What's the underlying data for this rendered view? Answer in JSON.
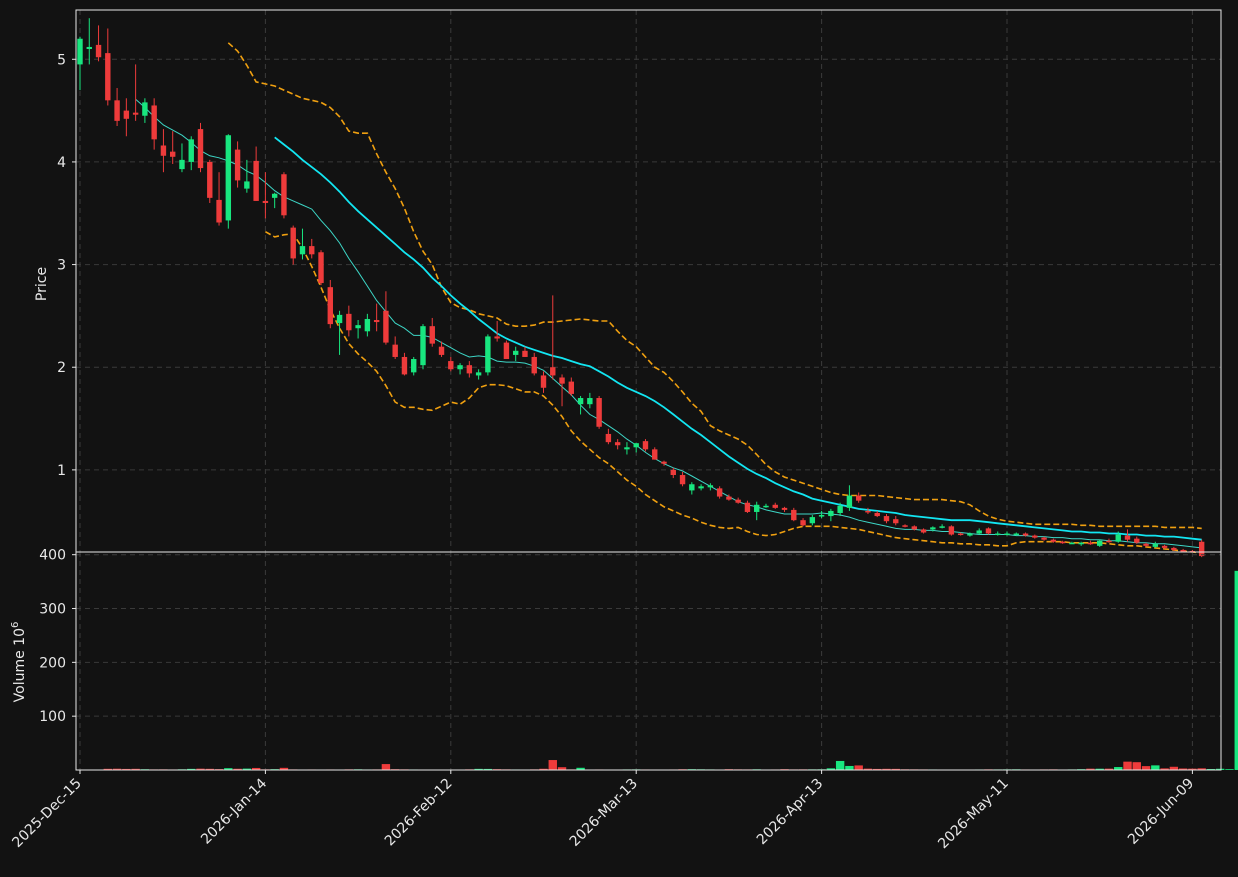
{
  "chart_data": {
    "type": "candlestick",
    "theme": {
      "background": "#121212",
      "up_color": "#18e67f",
      "down_color": "#ee3b3b",
      "ma_fast_color": "#3dd6c6",
      "ma_slow_color": "#12e6f2",
      "band_color": "#f0a010",
      "grid": "dashed",
      "text_color": "#e8e8e8"
    },
    "price_panel": {
      "ylabel": "Price",
      "yticks": [
        1,
        2,
        3,
        4,
        5
      ],
      "ylim": [
        0.2,
        5.48
      ]
    },
    "volume_panel": {
      "ylabel": "Volume  10",
      "ylabel_exp": "6",
      "yticks": [
        100,
        200,
        300,
        400
      ],
      "ylim": [
        0,
        405
      ]
    },
    "xticks": [
      {
        "label": "2025-Dec-15",
        "index": 0
      },
      {
        "label": "2026-Jan-14",
        "index": 20
      },
      {
        "label": "2026-Feb-12",
        "index": 40
      },
      {
        "label": "2026-Mar-13",
        "index": 60
      },
      {
        "label": "2026-Apr-13",
        "index": 80
      },
      {
        "label": "2026-May-11",
        "index": 100
      },
      {
        "label": "2026-Jun-09",
        "index": 120
      }
    ],
    "ohlc": [
      [
        4.95,
        5.22,
        4.7,
        5.2
      ],
      [
        5.1,
        5.4,
        4.95,
        5.12
      ],
      [
        5.14,
        5.33,
        4.98,
        5.02
      ],
      [
        5.06,
        5.3,
        4.55,
        4.6
      ],
      [
        4.6,
        4.72,
        4.35,
        4.4
      ],
      [
        4.5,
        4.62,
        4.25,
        4.42
      ],
      [
        4.48,
        4.95,
        4.4,
        4.46
      ],
      [
        4.45,
        4.62,
        4.38,
        4.58
      ],
      [
        4.55,
        4.62,
        4.12,
        4.22
      ],
      [
        4.16,
        4.32,
        3.9,
        4.06
      ],
      [
        4.1,
        4.3,
        3.98,
        4.05
      ],
      [
        3.93,
        4.18,
        3.9,
        4.02
      ],
      [
        4.0,
        4.25,
        3.92,
        4.22
      ],
      [
        4.32,
        4.38,
        3.9,
        3.94
      ],
      [
        4.0,
        4.02,
        3.6,
        3.65
      ],
      [
        3.63,
        3.9,
        3.38,
        3.41
      ],
      [
        3.43,
        4.27,
        3.35,
        4.26
      ],
      [
        4.12,
        4.2,
        3.75,
        3.82
      ],
      [
        3.74,
        4.02,
        3.7,
        3.81
      ],
      [
        4.01,
        4.15,
        3.62,
        3.62
      ],
      [
        3.62,
        3.9,
        3.45,
        3.6
      ],
      [
        3.65,
        3.7,
        3.55,
        3.69
      ],
      [
        3.88,
        3.9,
        3.45,
        3.48
      ],
      [
        3.36,
        3.38,
        3.0,
        3.06
      ],
      [
        3.1,
        3.35,
        3.05,
        3.18
      ],
      [
        3.18,
        3.25,
        3.06,
        3.1
      ],
      [
        3.12,
        3.14,
        2.8,
        2.82
      ],
      [
        2.78,
        2.85,
        2.38,
        2.42
      ],
      [
        2.43,
        2.55,
        2.12,
        2.51
      ],
      [
        2.52,
        2.6,
        2.3,
        2.36
      ],
      [
        2.38,
        2.46,
        2.28,
        2.41
      ],
      [
        2.35,
        2.52,
        2.3,
        2.47
      ],
      [
        2.46,
        2.62,
        2.35,
        2.44
      ],
      [
        2.55,
        2.74,
        2.22,
        2.24
      ],
      [
        2.22,
        2.3,
        2.08,
        2.1
      ],
      [
        2.1,
        2.14,
        1.92,
        1.93
      ],
      [
        1.95,
        2.1,
        1.92,
        2.08
      ],
      [
        2.02,
        2.42,
        1.98,
        2.4
      ],
      [
        2.4,
        2.48,
        2.2,
        2.23
      ],
      [
        2.2,
        2.25,
        2.1,
        2.12
      ],
      [
        2.06,
        2.1,
        1.96,
        1.98
      ],
      [
        1.98,
        2.04,
        1.93,
        2.02
      ],
      [
        2.02,
        2.06,
        1.9,
        1.94
      ],
      [
        1.92,
        1.98,
        1.88,
        1.95
      ],
      [
        1.95,
        2.32,
        1.92,
        2.3
      ],
      [
        2.3,
        2.45,
        2.25,
        2.28
      ],
      [
        2.24,
        2.26,
        2.08,
        2.08
      ],
      [
        2.12,
        2.2,
        2.06,
        2.16
      ],
      [
        2.16,
        2.2,
        2.1,
        2.1
      ],
      [
        2.1,
        2.14,
        1.92,
        1.94
      ],
      [
        1.92,
        1.96,
        1.75,
        1.8
      ],
      [
        2.0,
        2.7,
        1.88,
        1.92
      ],
      [
        1.9,
        1.93,
        1.62,
        1.84
      ],
      [
        1.86,
        1.9,
        1.72,
        1.74
      ],
      [
        1.64,
        1.72,
        1.54,
        1.7
      ],
      [
        1.64,
        1.75,
        1.6,
        1.7
      ],
      [
        1.7,
        1.72,
        1.4,
        1.42
      ],
      [
        1.35,
        1.4,
        1.25,
        1.27
      ],
      [
        1.27,
        1.3,
        1.2,
        1.24
      ],
      [
        1.2,
        1.27,
        1.15,
        1.22
      ],
      [
        1.22,
        1.26,
        1.17,
        1.26
      ],
      [
        1.28,
        1.3,
        1.18,
        1.2
      ],
      [
        1.2,
        1.22,
        1.1,
        1.1
      ],
      [
        1.08,
        1.09,
        1.04,
        1.06
      ],
      [
        1.0,
        1.02,
        0.92,
        0.95
      ],
      [
        0.95,
        0.98,
        0.84,
        0.86
      ],
      [
        0.8,
        0.88,
        0.76,
        0.86
      ],
      [
        0.82,
        0.86,
        0.8,
        0.84
      ],
      [
        0.83,
        0.87,
        0.8,
        0.85
      ],
      [
        0.82,
        0.84,
        0.72,
        0.74
      ],
      [
        0.74,
        0.76,
        0.7,
        0.71
      ],
      [
        0.71,
        0.73,
        0.67,
        0.68
      ],
      [
        0.68,
        0.7,
        0.58,
        0.59
      ],
      [
        0.59,
        0.69,
        0.51,
        0.66
      ],
      [
        0.65,
        0.67,
        0.63,
        0.65
      ],
      [
        0.66,
        0.68,
        0.62,
        0.63
      ],
      [
        0.63,
        0.64,
        0.59,
        0.61
      ],
      [
        0.61,
        0.63,
        0.5,
        0.51
      ],
      [
        0.51,
        0.53,
        0.45,
        0.46
      ],
      [
        0.48,
        0.56,
        0.46,
        0.54
      ],
      [
        0.56,
        0.6,
        0.53,
        0.56
      ],
      [
        0.55,
        0.62,
        0.5,
        0.6
      ],
      [
        0.58,
        0.68,
        0.55,
        0.65
      ],
      [
        0.63,
        0.85,
        0.6,
        0.75
      ],
      [
        0.75,
        0.78,
        0.68,
        0.7
      ],
      [
        0.6,
        0.63,
        0.57,
        0.59
      ],
      [
        0.58,
        0.6,
        0.54,
        0.55
      ],
      [
        0.55,
        0.57,
        0.48,
        0.5
      ],
      [
        0.52,
        0.55,
        0.46,
        0.48
      ],
      [
        0.46,
        0.47,
        0.44,
        0.45
      ],
      [
        0.45,
        0.46,
        0.41,
        0.42
      ],
      [
        0.42,
        0.43,
        0.38,
        0.39
      ],
      [
        0.42,
        0.45,
        0.4,
        0.44
      ],
      [
        0.45,
        0.47,
        0.43,
        0.45
      ],
      [
        0.45,
        0.46,
        0.36,
        0.37
      ],
      [
        0.38,
        0.39,
        0.36,
        0.37
      ],
      [
        0.36,
        0.39,
        0.35,
        0.38
      ],
      [
        0.38,
        0.43,
        0.37,
        0.41
      ],
      [
        0.43,
        0.44,
        0.37,
        0.38
      ],
      [
        0.37,
        0.4,
        0.36,
        0.38
      ],
      [
        0.38,
        0.4,
        0.36,
        0.38
      ],
      [
        0.38,
        0.39,
        0.36,
        0.38
      ],
      [
        0.38,
        0.39,
        0.35,
        0.36
      ],
      [
        0.36,
        0.37,
        0.33,
        0.34
      ],
      [
        0.34,
        0.35,
        0.31,
        0.32
      ],
      [
        0.32,
        0.33,
        0.29,
        0.3
      ],
      [
        0.3,
        0.31,
        0.28,
        0.29
      ],
      [
        0.29,
        0.3,
        0.28,
        0.29
      ],
      [
        0.28,
        0.3,
        0.26,
        0.29
      ],
      [
        0.29,
        0.31,
        0.27,
        0.28
      ],
      [
        0.26,
        0.32,
        0.25,
        0.31
      ],
      [
        0.31,
        0.33,
        0.29,
        0.3
      ],
      [
        0.3,
        0.4,
        0.29,
        0.37
      ],
      [
        0.36,
        0.42,
        0.3,
        0.32
      ],
      [
        0.33,
        0.35,
        0.28,
        0.29
      ],
      [
        0.28,
        0.29,
        0.25,
        0.26
      ],
      [
        0.25,
        0.3,
        0.24,
        0.28
      ],
      [
        0.26,
        0.27,
        0.23,
        0.24
      ],
      [
        0.24,
        0.25,
        0.21,
        0.22
      ],
      [
        0.22,
        0.23,
        0.2,
        0.21
      ],
      [
        0.21,
        0.22,
        0.19,
        0.2
      ],
      [
        0.3,
        0.32,
        0.15,
        0.16
      ]
    ],
    "volume": [
      0.4,
      0.5,
      0.6,
      2.2,
      2.4,
      2.0,
      2.2,
      1.4,
      1.1,
      1.2,
      1.0,
      1.3,
      2.1,
      2.5,
      2.2,
      1.6,
      3.4,
      2.3,
      2.6,
      3.8,
      1.2,
      1.5,
      4.0,
      1.1,
      0.9,
      1.0,
      0.8,
      1.0,
      0.9,
      1.2,
      1.3,
      1.0,
      1.1,
      11.0,
      1.5,
      1.2,
      1.0,
      0.9,
      0.7,
      0.8,
      0.9,
      0.8,
      1.2,
      2.1,
      2.0,
      1.5,
      1.2,
      1.0,
      0.8,
      1.2,
      2.3,
      18.5,
      5.2,
      1.1,
      4.1,
      0.9,
      1.0,
      0.8,
      0.9,
      1.1,
      1.2,
      1.0,
      0.7,
      0.9,
      1.0,
      1.4,
      1.5,
      1.3,
      1.1,
      0.8,
      1.5,
      1.2,
      1.1,
      1.3,
      0.9,
      1.0,
      1.5,
      1.1,
      1.2,
      1.2,
      1.3,
      3.1,
      16.8,
      7.5,
      8.5,
      2.5,
      2.0,
      2.2,
      2.1,
      1.3,
      1.2,
      1.1,
      1.0,
      0.9,
      0.8,
      0.7,
      0.9,
      1.0,
      1.2,
      1.1,
      1.2,
      1.3,
      1.0,
      0.8,
      1.1,
      1.2,
      0.9,
      1.1,
      1.5,
      2.5,
      2.4,
      2.5,
      5.5,
      15.5,
      14.5,
      7.2,
      8.6,
      3.0,
      6.0,
      2.8,
      2.5,
      3.1,
      1.8,
      2.3,
      1.5,
      370.0
    ],
    "ma_fast": [
      4.61,
      4.53,
      4.44,
      4.36,
      4.31,
      4.26,
      4.19,
      4.11,
      4.06,
      4.04,
      4.01,
      3.97,
      3.91,
      3.87,
      3.8,
      3.72,
      3.66,
      3.62,
      3.58,
      3.54,
      3.43,
      3.33,
      3.21,
      3.06,
      2.93,
      2.79,
      2.65,
      2.54,
      2.43,
      2.38,
      2.31,
      2.31,
      2.29,
      2.24,
      2.19,
      2.14,
      2.1,
      2.11,
      2.1,
      2.06,
      2.05,
      2.05,
      2.04,
      2.01,
      1.97,
      1.89,
      1.81,
      1.73,
      1.63,
      1.54,
      1.49,
      1.43,
      1.37,
      1.3,
      1.24,
      1.17,
      1.11,
      1.06,
      1.02,
      0.99,
      0.94,
      0.89,
      0.84,
      0.79,
      0.74,
      0.69,
      0.66,
      0.64,
      0.61,
      0.59,
      0.57,
      0.57,
      0.57,
      0.57,
      0.58,
      0.57,
      0.56,
      0.54,
      0.51,
      0.49,
      0.47,
      0.45,
      0.43,
      0.42,
      0.42,
      0.41,
      0.41,
      0.4,
      0.4,
      0.39,
      0.38,
      0.37,
      0.37,
      0.37,
      0.37,
      0.36,
      0.36,
      0.35,
      0.35,
      0.34,
      0.34,
      0.33,
      0.33,
      0.32,
      0.32,
      0.31,
      0.31,
      0.3,
      0.29,
      0.29,
      0.28,
      0.28,
      0.27,
      0.26,
      0.25,
      0.24
    ],
    "ma_slow": [
      4.24,
      4.17,
      4.1,
      4.02,
      3.95,
      3.88,
      3.8,
      3.71,
      3.61,
      3.52,
      3.44,
      3.36,
      3.28,
      3.2,
      3.12,
      3.05,
      2.97,
      2.87,
      2.79,
      2.7,
      2.62,
      2.55,
      2.47,
      2.4,
      2.33,
      2.28,
      2.24,
      2.2,
      2.17,
      2.14,
      2.11,
      2.09,
      2.06,
      2.03,
      2.01,
      1.96,
      1.91,
      1.85,
      1.8,
      1.76,
      1.72,
      1.67,
      1.61,
      1.54,
      1.47,
      1.4,
      1.34,
      1.27,
      1.2,
      1.13,
      1.07,
      1.01,
      0.96,
      0.92,
      0.87,
      0.83,
      0.79,
      0.76,
      0.72,
      0.7,
      0.68,
      0.66,
      0.64,
      0.62,
      0.61,
      0.6,
      0.59,
      0.58,
      0.56,
      0.55,
      0.54,
      0.53,
      0.52,
      0.51,
      0.51,
      0.51,
      0.5,
      0.49,
      0.48,
      0.47,
      0.46,
      0.45,
      0.44,
      0.43,
      0.42,
      0.41,
      0.4,
      0.4,
      0.39,
      0.39,
      0.38,
      0.38,
      0.37,
      0.37,
      0.36,
      0.36,
      0.35,
      0.35,
      0.34,
      0.33,
      0.32
    ],
    "band_upper": [
      5.16,
      5.08,
      4.94,
      4.78,
      4.76,
      4.74,
      4.7,
      4.66,
      4.62,
      4.6,
      4.58,
      4.53,
      4.44,
      4.3,
      4.28,
      4.28,
      4.08,
      3.9,
      3.74,
      3.55,
      3.32,
      3.13,
      3.0,
      2.78,
      2.63,
      2.58,
      2.56,
      2.52,
      2.5,
      2.48,
      2.42,
      2.4,
      2.4,
      2.41,
      2.44,
      2.44,
      2.45,
      2.46,
      2.47,
      2.46,
      2.45,
      2.45,
      2.35,
      2.26,
      2.2,
      2.1,
      2.0,
      1.95,
      1.86,
      1.76,
      1.65,
      1.57,
      1.43,
      1.38,
      1.34,
      1.3,
      1.24,
      1.15,
      1.05,
      0.98,
      0.93,
      0.9,
      0.87,
      0.84,
      0.81,
      0.78,
      0.76,
      0.75,
      0.75,
      0.75,
      0.75,
      0.74,
      0.73,
      0.72,
      0.71,
      0.71,
      0.71,
      0.71,
      0.7,
      0.69,
      0.66,
      0.6,
      0.55,
      0.52,
      0.5,
      0.49,
      0.48,
      0.47,
      0.47,
      0.47,
      0.47,
      0.47,
      0.46,
      0.46,
      0.45,
      0.45,
      0.45,
      0.45,
      0.45,
      0.45,
      0.45,
      0.44,
      0.44,
      0.44,
      0.44,
      0.43
    ],
    "band_lower": [
      3.32,
      3.27,
      3.29,
      3.3,
      3.16,
      2.98,
      2.78,
      2.56,
      2.38,
      2.23,
      2.13,
      2.05,
      1.96,
      1.82,
      1.66,
      1.61,
      1.61,
      1.59,
      1.58,
      1.62,
      1.66,
      1.64,
      1.7,
      1.8,
      1.83,
      1.83,
      1.82,
      1.79,
      1.76,
      1.76,
      1.72,
      1.63,
      1.52,
      1.38,
      1.28,
      1.2,
      1.12,
      1.06,
      0.98,
      0.9,
      0.84,
      0.76,
      0.7,
      0.64,
      0.6,
      0.56,
      0.53,
      0.49,
      0.46,
      0.44,
      0.43,
      0.44,
      0.4,
      0.37,
      0.36,
      0.37,
      0.4,
      0.43,
      0.45,
      0.45,
      0.45,
      0.45,
      0.44,
      0.43,
      0.42,
      0.4,
      0.38,
      0.36,
      0.34,
      0.33,
      0.32,
      0.31,
      0.3,
      0.29,
      0.29,
      0.28,
      0.28,
      0.27,
      0.27,
      0.26,
      0.26,
      0.29,
      0.3,
      0.3,
      0.3,
      0.3,
      0.3,
      0.29,
      0.29,
      0.29,
      0.29,
      0.28,
      0.27,
      0.26,
      0.26,
      0.25,
      0.24,
      0.23,
      0.22,
      0.21,
      0.2,
      0.19
    ]
  }
}
